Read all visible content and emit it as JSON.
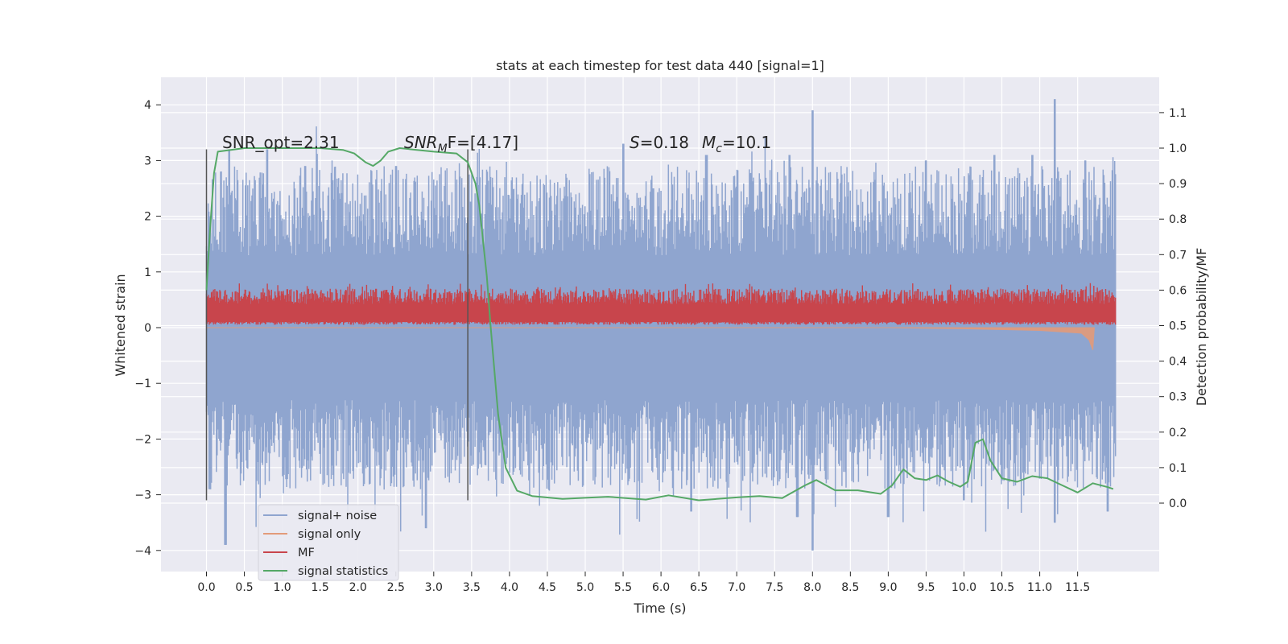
{
  "chart_data": {
    "type": "line",
    "title": "stats at each timestep for test data 440 [signal=1]",
    "xlabel": "Time (s)",
    "ylabel_left": "Whitened strain",
    "ylabel_right": "Detection probability/MF",
    "x_ticks": [
      "0.0",
      "0.5",
      "1.0",
      "1.5",
      "2.0",
      "2.5",
      "3.0",
      "3.5",
      "4.0",
      "4.5",
      "5.0",
      "5.5",
      "6.0",
      "6.5",
      "7.0",
      "7.5",
      "8.0",
      "8.5",
      "9.0",
      "9.5",
      "10.0",
      "10.5",
      "11.0",
      "11.5"
    ],
    "y_left_ticks": [
      4,
      3,
      2,
      1,
      0,
      -1,
      -2,
      -3,
      -4
    ],
    "y_right_ticks": [
      "1.1",
      "1.0",
      "0.9",
      "0.8",
      "0.7",
      "0.6",
      "0.5",
      "0.4",
      "0.3",
      "0.2",
      "0.1",
      "0.0"
    ],
    "xlim": [
      -0.6,
      12.6
    ],
    "ylim_left": [
      -4.4,
      4.5
    ],
    "ylim_right": [
      -0.2,
      1.2
    ],
    "grid": true,
    "legend_placement": "lower-left",
    "annotations": {
      "snr_opt": "SNR_opt=2.31",
      "snr_mf_label": "SNR",
      "snr_mf_sub": "M",
      "snr_mf_rest": "F=[4.17]",
      "s_label": "S",
      "s_value": "=0.18",
      "mc_label": "M",
      "mc_sub": "c",
      "mc_value": "=10.1"
    },
    "vlines": [
      0.0,
      3.45
    ],
    "series": [
      {
        "name": "signal+ noise",
        "axis": "left",
        "color": "#8fa5cf",
        "envelope": {
          "x_range": [
            0.0,
            12.0
          ],
          "baseline_upper": 2.0,
          "baseline_lower": -2.0,
          "peaks_upper": [
            [
              0.05,
              1.7
            ],
            [
              0.3,
              3.2
            ],
            [
              0.8,
              3.2
            ],
            [
              1.3,
              2.9
            ],
            [
              2.5,
              2.9
            ],
            [
              3.2,
              2.2
            ],
            [
              5.5,
              3.3
            ],
            [
              5.9,
              2.5
            ],
            [
              6.6,
              3.1
            ],
            [
              7.7,
              3.1
            ],
            [
              8.0,
              3.9
            ],
            [
              8.6,
              2.2
            ],
            [
              9.5,
              3.0
            ],
            [
              10.4,
              3.1
            ],
            [
              10.9,
              3.1
            ],
            [
              11.2,
              4.1
            ],
            [
              11.6,
              3.0
            ]
          ],
          "peaks_lower": [
            [
              0.05,
              -2.9
            ],
            [
              0.25,
              -3.9
            ],
            [
              2.9,
              -3.6
            ],
            [
              6.4,
              -3.3
            ],
            [
              7.8,
              -3.4
            ],
            [
              8.0,
              -4.0
            ],
            [
              9.0,
              -3.4
            ],
            [
              10.0,
              -3.1
            ],
            [
              11.2,
              -3.5
            ],
            [
              11.9,
              -3.3
            ]
          ]
        }
      },
      {
        "name": "signal only",
        "axis": "left",
        "color": "#e39b7a",
        "points": [
          [
            0.0,
            0.0
          ],
          [
            9.0,
            0.0
          ],
          [
            10.0,
            -0.02
          ],
          [
            11.0,
            -0.05
          ],
          [
            11.55,
            -0.1
          ],
          [
            11.65,
            -0.22
          ],
          [
            11.7,
            -0.4
          ],
          [
            11.72,
            0.0
          ]
        ]
      },
      {
        "name": "MF",
        "axis": "left",
        "color": "#c8454c",
        "band": {
          "x_range": [
            0.0,
            12.0
          ],
          "lower": 0.05,
          "upper": 0.6,
          "spike_max": 0.8
        }
      },
      {
        "name": "signal statistics",
        "axis": "right",
        "color": "#55a866",
        "points": [
          [
            0.0,
            0.6
          ],
          [
            0.05,
            0.78
          ],
          [
            0.1,
            0.93
          ],
          [
            0.15,
            0.99
          ],
          [
            0.5,
            1.0
          ],
          [
            1.5,
            1.0
          ],
          [
            1.8,
            0.995
          ],
          [
            1.95,
            0.985
          ],
          [
            2.1,
            0.96
          ],
          [
            2.2,
            0.95
          ],
          [
            2.3,
            0.965
          ],
          [
            2.4,
            0.99
          ],
          [
            2.55,
            1.0
          ],
          [
            3.0,
            0.99
          ],
          [
            3.3,
            0.985
          ],
          [
            3.45,
            0.96
          ],
          [
            3.55,
            0.9
          ],
          [
            3.6,
            0.84
          ],
          [
            3.7,
            0.64
          ],
          [
            3.75,
            0.5
          ],
          [
            3.85,
            0.25
          ],
          [
            3.95,
            0.1
          ],
          [
            4.1,
            0.035
          ],
          [
            4.3,
            0.02
          ],
          [
            4.7,
            0.012
          ],
          [
            5.0,
            0.015
          ],
          [
            5.3,
            0.018
          ],
          [
            5.8,
            0.01
          ],
          [
            6.1,
            0.022
          ],
          [
            6.5,
            0.008
          ],
          [
            7.0,
            0.016
          ],
          [
            7.3,
            0.02
          ],
          [
            7.6,
            0.014
          ],
          [
            7.9,
            0.05
          ],
          [
            8.05,
            0.065
          ],
          [
            8.3,
            0.036
          ],
          [
            8.6,
            0.036
          ],
          [
            8.9,
            0.026
          ],
          [
            9.05,
            0.05
          ],
          [
            9.2,
            0.095
          ],
          [
            9.35,
            0.07
          ],
          [
            9.5,
            0.065
          ],
          [
            9.65,
            0.078
          ],
          [
            9.8,
            0.06
          ],
          [
            9.95,
            0.046
          ],
          [
            10.05,
            0.06
          ],
          [
            10.15,
            0.17
          ],
          [
            10.25,
            0.18
          ],
          [
            10.35,
            0.12
          ],
          [
            10.5,
            0.07
          ],
          [
            10.7,
            0.06
          ],
          [
            10.9,
            0.076
          ],
          [
            11.1,
            0.07
          ],
          [
            11.3,
            0.05
          ],
          [
            11.5,
            0.03
          ],
          [
            11.7,
            0.056
          ],
          [
            11.9,
            0.045
          ],
          [
            11.97,
            0.04
          ]
        ]
      }
    ]
  }
}
